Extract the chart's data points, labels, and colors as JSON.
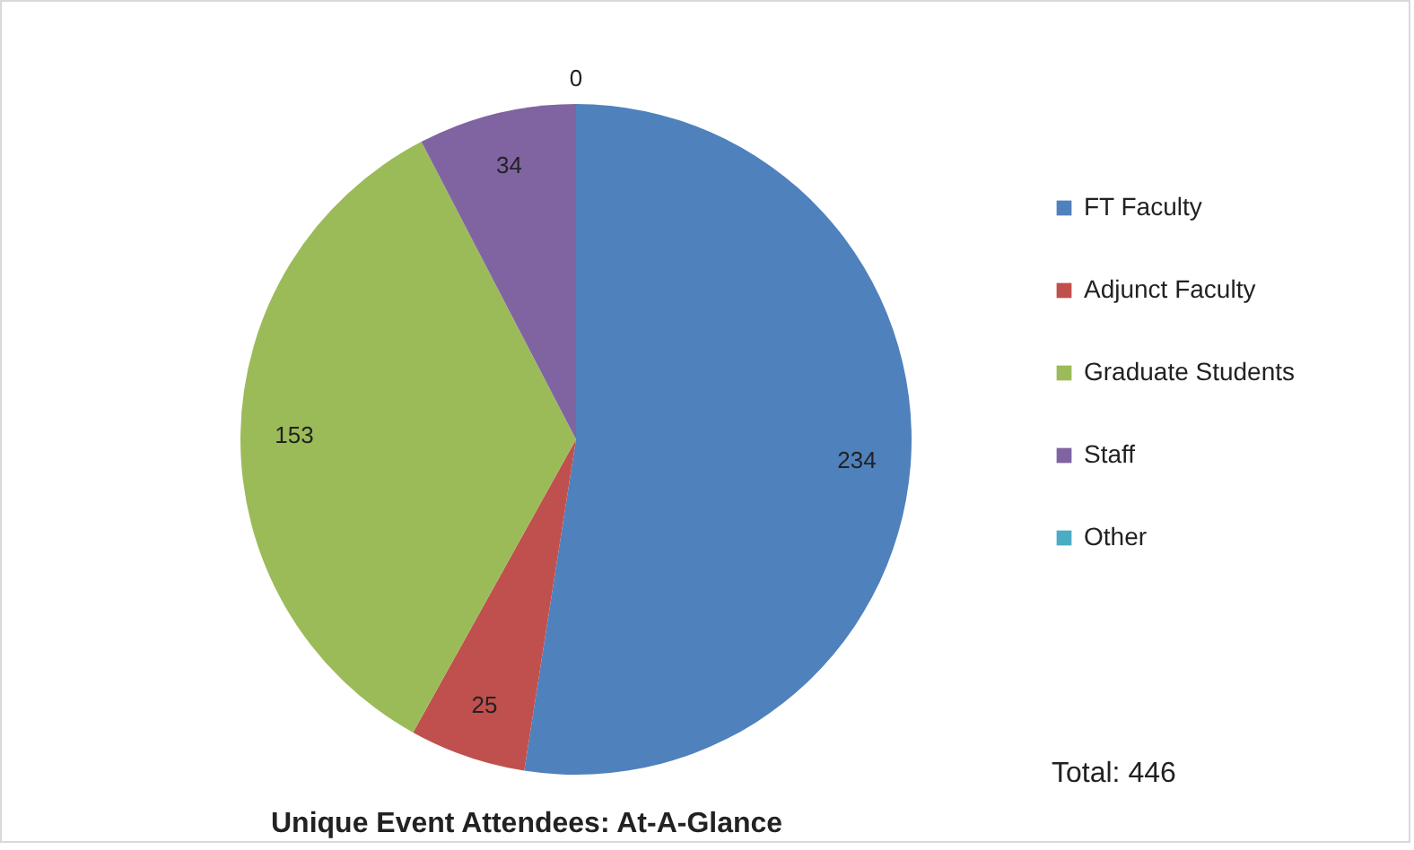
{
  "chart_data": {
    "type": "pie",
    "title": "Unique Event Attendees: At-A-Glance",
    "categories": [
      "FT Faculty",
      "Adjunct Faculty",
      "Graduate Students",
      "Staff",
      "Other"
    ],
    "values": [
      234,
      25,
      153,
      34,
      0
    ],
    "colors": [
      "#4f81bd",
      "#c0504d",
      "#9bbb59",
      "#8064a2",
      "#4bacc6"
    ],
    "value_labels": [
      "234",
      "25",
      "153",
      "34",
      "0"
    ],
    "legend": "right",
    "annotations": [
      "Total: 446"
    ]
  }
}
